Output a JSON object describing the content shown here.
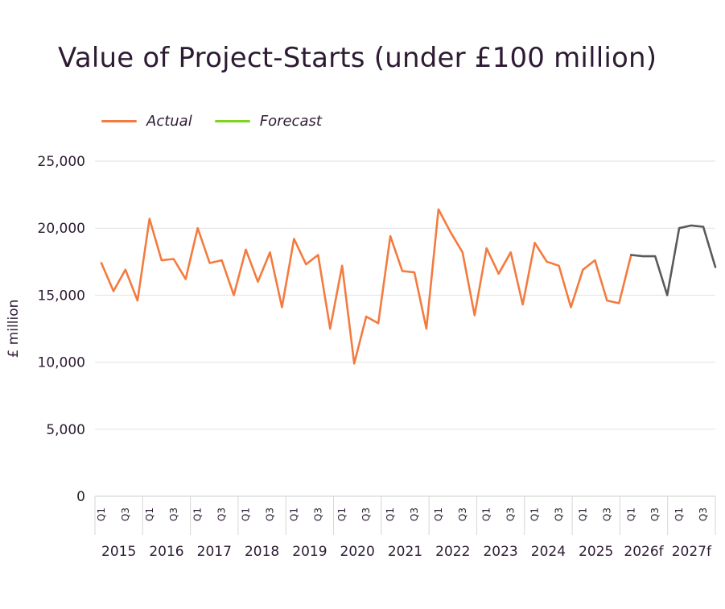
{
  "title": "Value of Project-Starts (under £100 million)",
  "legend": [
    {
      "label": "Actual",
      "color": "#f47b3f"
    },
    {
      "label": "Forecast",
      "color": "#7ed321"
    }
  ],
  "chart_data": {
    "type": "line",
    "title": "Value of Project-Starts (under £100 million)",
    "ylabel": "£ million",
    "xlabel": "",
    "ylim": [
      0,
      25000
    ],
    "yticks": [
      0,
      5000,
      10000,
      15000,
      20000,
      25000
    ],
    "ytick_labels": [
      "0",
      "5,000",
      "10,000",
      "15,000",
      "20,000",
      "25,000"
    ],
    "years": [
      "2015",
      "2016",
      "2017",
      "2018",
      "2019",
      "2020",
      "2021",
      "2022",
      "2023",
      "2024",
      "2025",
      "2026f",
      "2027f"
    ],
    "quarter_labels": [
      "Q1",
      "Q3"
    ],
    "grid": true,
    "legend_position": "top-left",
    "series": [
      {
        "name": "Actual",
        "color": "#f47b3f",
        "start_index": 0,
        "values": [
          17400,
          15300,
          16900,
          14600,
          20700,
          17600,
          17700,
          16200,
          20000,
          17400,
          17600,
          15000,
          18400,
          16000,
          18200,
          14100,
          19200,
          17300,
          18000,
          12500,
          17200,
          9900,
          13400,
          12900,
          19400,
          16800,
          16700,
          12500,
          21400,
          19700,
          18200,
          13500,
          18500,
          16600,
          18200,
          14300,
          18900,
          17500,
          17200,
          14100,
          16900,
          17600,
          14600,
          14400,
          18000
        ]
      },
      {
        "name": "Forecast",
        "color": "#5a5a5a",
        "start_index": 44,
        "values": [
          18000,
          17900,
          17900,
          15000,
          20000,
          20200,
          20100,
          17100
        ]
      }
    ]
  }
}
